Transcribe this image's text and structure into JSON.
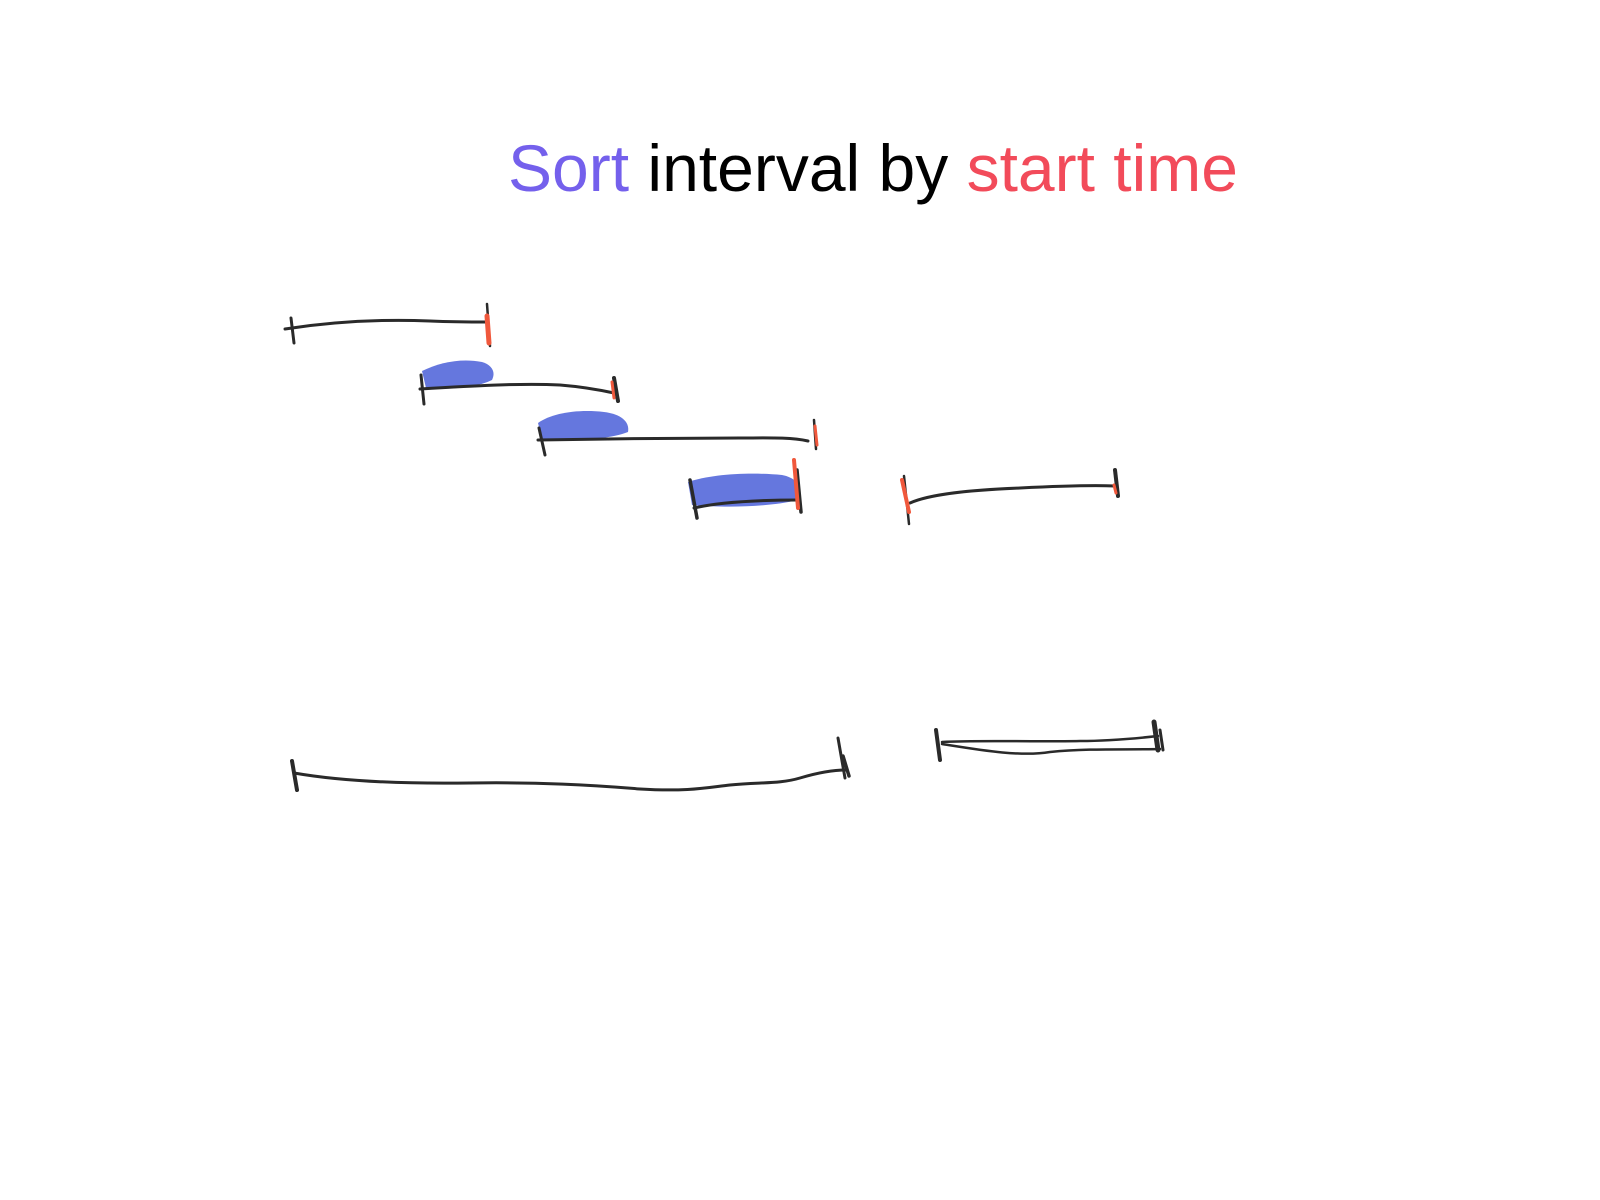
{
  "title": {
    "word_1": "Sort",
    "word_2": "interval by",
    "word_3": "start time"
  },
  "colors": {
    "sort": "#7460ec",
    "start_time": "#f24b5a",
    "ink": "#2a2a2a",
    "end_mark": "#f0583c",
    "highlight": "#4a5fd8"
  }
}
